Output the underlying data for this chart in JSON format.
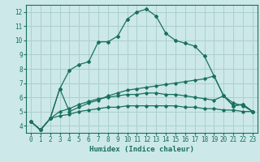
{
  "title": "",
  "xlabel": "Humidex (Indice chaleur)",
  "ylabel": "",
  "background_color": "#cce8e8",
  "grid_color": "#aacfcf",
  "line_color": "#1a7060",
  "xlim": [
    -0.5,
    23.5
  ],
  "ylim": [
    3.5,
    12.5
  ],
  "yticks": [
    4,
    5,
    6,
    7,
    8,
    9,
    10,
    11,
    12
  ],
  "xticks": [
    0,
    1,
    2,
    3,
    4,
    5,
    6,
    7,
    8,
    9,
    10,
    11,
    12,
    13,
    14,
    15,
    16,
    17,
    18,
    19,
    20,
    21,
    22,
    23
  ],
  "series": [
    [
      4.3,
      3.7,
      4.5,
      6.6,
      7.9,
      8.3,
      8.5,
      9.9,
      9.9,
      10.3,
      11.5,
      12.0,
      12.2,
      11.7,
      10.5,
      10.0,
      9.8,
      9.6,
      8.9,
      7.5,
      6.1,
      5.4,
      5.5,
      5.0
    ],
    [
      4.3,
      3.7,
      4.5,
      4.7,
      4.8,
      5.0,
      5.1,
      5.2,
      5.3,
      5.3,
      5.4,
      5.4,
      5.4,
      5.4,
      5.4,
      5.4,
      5.3,
      5.3,
      5.2,
      5.2,
      5.1,
      5.1,
      5.0,
      5.0
    ],
    [
      4.3,
      3.7,
      4.5,
      5.0,
      5.2,
      5.5,
      5.7,
      5.9,
      6.0,
      6.1,
      6.2,
      6.2,
      6.3,
      6.3,
      6.2,
      6.2,
      6.1,
      6.0,
      5.9,
      5.8,
      6.1,
      5.6,
      5.4,
      5.0
    ],
    [
      4.3,
      3.7,
      4.5,
      6.6,
      5.0,
      5.3,
      5.6,
      5.8,
      6.1,
      6.3,
      6.5,
      6.6,
      6.7,
      6.8,
      6.9,
      7.0,
      7.1,
      7.2,
      7.3,
      7.5,
      6.1,
      5.4,
      5.5,
      5.0
    ]
  ]
}
